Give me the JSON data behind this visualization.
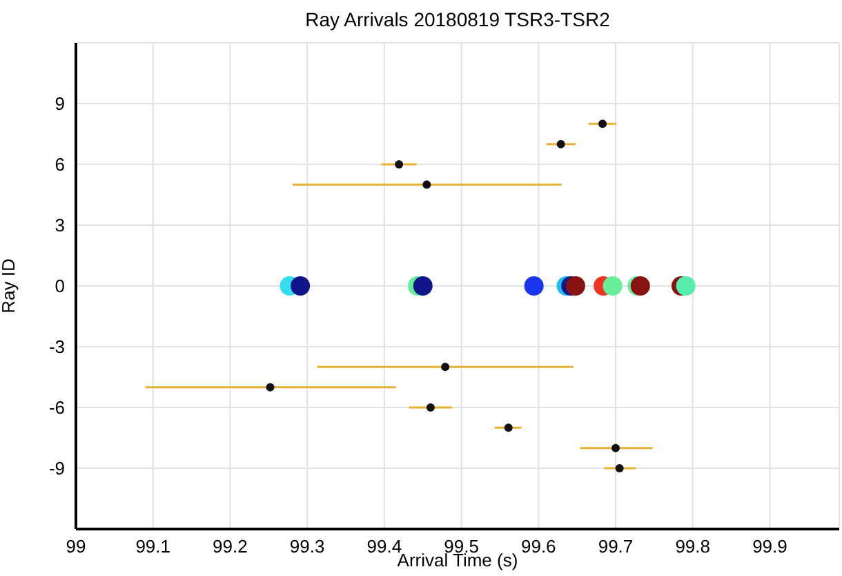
{
  "chart_data": {
    "type": "scatter",
    "title": "Ray Arrivals 20180819 TSR3-TSR2",
    "xlabel": "Arrival Time (s)",
    "ylabel": "Ray ID",
    "xlim": [
      99,
      99.99
    ],
    "xticks": [
      99,
      99.1,
      99.2,
      99.3,
      99.4,
      99.5,
      99.6,
      99.7,
      99.8,
      99.9
    ],
    "ylim": [
      -12,
      12
    ],
    "yticks": [
      -9,
      -6,
      -3,
      0,
      3,
      6,
      9
    ],
    "grid": true,
    "marker": "circle",
    "series": [
      {
        "x": [
          99.277,
          99.291,
          99.443,
          99.45,
          99.594,
          99.636,
          99.642,
          99.648,
          99.684,
          99.696,
          99.728,
          99.732,
          99.785,
          99.791
        ],
        "values": [
          0,
          0,
          0,
          0,
          0,
          0,
          0,
          0,
          0,
          0,
          0,
          0,
          0,
          0
        ],
        "colors": [
          "#33ddee",
          "#10168a",
          "#66ee99",
          "#10168a",
          "#1a35ee",
          "#22bbee",
          "#10168a",
          "#881111",
          "#ee3322",
          "#66ee99",
          "#66ee99",
          "#881111",
          "#881111",
          "#55eeaa"
        ]
      },
      {
        "color": "#111111",
        "x": [
          99.683,
          99.629,
          99.419,
          99.455,
          99.479,
          99.252,
          99.46,
          99.561,
          99.7,
          99.705
        ],
        "values": [
          8,
          7,
          6,
          5,
          -4,
          -5,
          -6,
          -7,
          -8,
          -9
        ],
        "xerrors": [
          [
            99.665,
            99.701
          ],
          [
            99.61,
            99.648
          ],
          [
            99.396,
            99.442
          ],
          [
            99.281,
            99.63
          ],
          [
            99.313,
            99.645
          ],
          [
            99.09,
            99.415
          ],
          [
            99.432,
            99.488
          ],
          [
            99.543,
            99.578
          ],
          [
            99.654,
            99.748
          ],
          [
            99.685,
            99.726
          ]
        ]
      }
    ]
  }
}
